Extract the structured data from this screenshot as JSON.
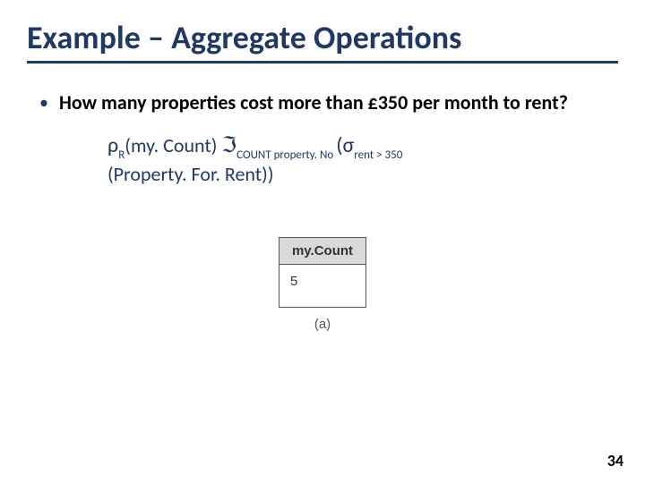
{
  "title": "Example – Aggregate Operations",
  "bullet": "How many properties cost more than £350 per month to rent?",
  "expr": {
    "rho": "ρ",
    "rho_sub": "R",
    "rho_arg": "(my. Count) ",
    "im": "ℑ",
    "im_sub": "COUNT property. No ",
    "sigma_open": "(σ",
    "sigma_sub": "rent > 350",
    "line2": "(Property. For. Rent))"
  },
  "table": {
    "header": "my.Count",
    "value": "5",
    "caption": "(a)"
  },
  "page_number": "34",
  "colors": {
    "title_color": "#1f3864",
    "title_underline": "#1f3864",
    "expr_color": "#1f3864",
    "table_header_bg": "#d9d9d9",
    "table_border": "#555555",
    "background": "#ffffff"
  }
}
